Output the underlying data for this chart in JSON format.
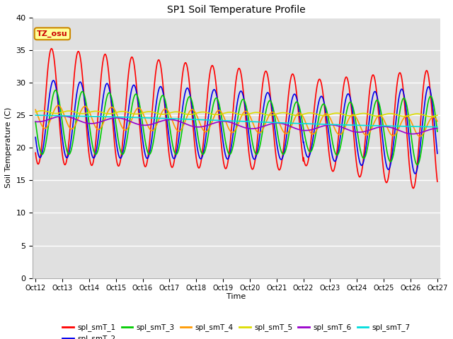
{
  "title": "SP1 Soil Temperature Profile",
  "xlabel": "Time",
  "ylabel": "Soil Temperature (C)",
  "ylim": [
    0,
    40
  ],
  "background_color": "#e0e0e0",
  "grid_color": "white",
  "series_colors": {
    "spl_smT_1": "#ff0000",
    "spl_smT_2": "#0000ee",
    "spl_smT_3": "#00cc00",
    "spl_smT_4": "#ff9900",
    "spl_smT_5": "#dddd00",
    "spl_smT_6": "#9900cc",
    "spl_smT_7": "#00dddd"
  },
  "annotation_text": "TZ_osu",
  "annotation_bg": "#ffff99",
  "annotation_border": "#cc8800",
  "x_tick_labels": [
    "Oct 12",
    "Oct 13",
    "Oct 14",
    "Oct 15",
    "Oct 16",
    "Oct 17",
    "Oct 18",
    "Oct 19",
    "Oct 20",
    "Oct 21",
    "Oct 22",
    "Oct 23",
    "Oct 24",
    "Oct 25",
    "Oct 26",
    "Oct 27"
  ],
  "x_tick_positions": [
    0,
    1,
    2,
    3,
    4,
    5,
    6,
    7,
    8,
    9,
    10,
    11,
    12,
    13,
    14,
    15
  ]
}
